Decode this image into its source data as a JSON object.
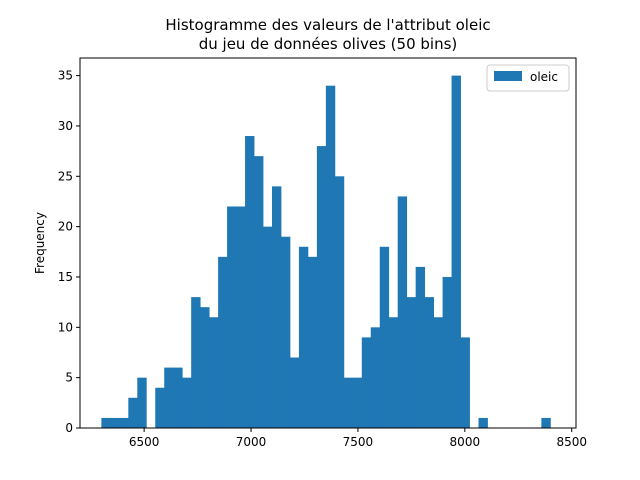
{
  "chart_data": {
    "type": "bar",
    "title_line1": "Histogramme des valeurs de l'attribut oleic",
    "title_line2": "du jeu de données olives (50 bins)",
    "xlabel": "",
    "ylabel": "Frequency",
    "xlim": [
      6200,
      8520
    ],
    "ylim": [
      0,
      36.75
    ],
    "bin_start": 6300,
    "bin_width": 42,
    "x_ticks": [
      6500,
      7000,
      7500,
      8000,
      8500
    ],
    "y_ticks": [
      0,
      5,
      10,
      15,
      20,
      25,
      30,
      35
    ],
    "series": [
      {
        "name": "oleic",
        "color": "#1f77b4",
        "values": [
          1,
          1,
          1,
          3,
          5,
          0,
          4,
          6,
          6,
          5,
          13,
          12,
          11,
          17,
          22,
          22,
          29,
          27,
          20,
          24,
          19,
          7,
          18,
          17,
          28,
          34,
          25,
          5,
          5,
          9,
          10,
          18,
          11,
          23,
          13,
          16,
          13,
          11,
          15,
          35,
          9,
          0,
          1,
          0,
          0,
          0,
          0,
          0,
          0,
          1
        ]
      }
    ],
    "legend_position": "top-right",
    "grid": false
  }
}
